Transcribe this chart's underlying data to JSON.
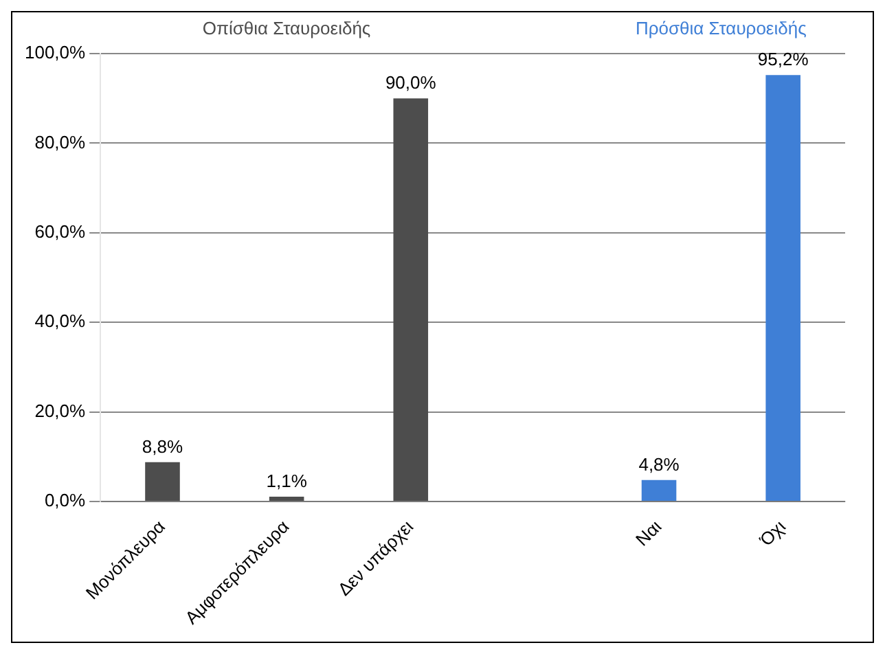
{
  "chart_data": {
    "type": "bar",
    "categories": [
      "Μονόπλευρα",
      "Αμφοτερόπλευρα",
      "Δεν υπάρχει",
      null,
      "Ναι",
      "Όχι"
    ],
    "series": [
      {
        "name": "Οπίσθια Σταυροειδής",
        "color": "#4d4d4d",
        "values": [
          8.8,
          1.1,
          90.0,
          null,
          null,
          null
        ],
        "value_labels": [
          "8,8%",
          "1,1%",
          "90,0%",
          null,
          null,
          null
        ]
      },
      {
        "name": "Πρόσθια Σταυροειδής",
        "color": "#3f7fd6",
        "values": [
          null,
          null,
          null,
          null,
          4.8,
          95.2
        ],
        "value_labels": [
          null,
          null,
          null,
          null,
          "4,8%",
          "95,2%"
        ]
      }
    ],
    "ylim": [
      0,
      100
    ],
    "yticks": [
      {
        "value": 0,
        "label": "0,0%"
      },
      {
        "value": 20,
        "label": "20,0%"
      },
      {
        "value": 40,
        "label": "40,0%"
      },
      {
        "value": 60,
        "label": "60,0%"
      },
      {
        "value": 80,
        "label": "80,0%"
      },
      {
        "value": 100,
        "label": "100,0%"
      }
    ],
    "grid": "y",
    "legend": false
  }
}
